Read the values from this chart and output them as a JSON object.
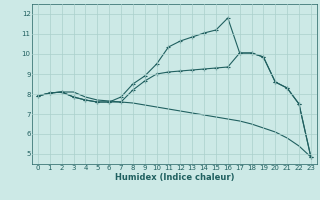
{
  "xlabel": "Humidex (Indice chaleur)",
  "background_color": "#cce9e6",
  "grid_color": "#aad0cc",
  "line_color": "#206060",
  "xlim": [
    -0.5,
    23.5
  ],
  "ylim": [
    4.5,
    12.5
  ],
  "xticks": [
    0,
    1,
    2,
    3,
    4,
    5,
    6,
    7,
    8,
    9,
    10,
    11,
    12,
    13,
    14,
    15,
    16,
    17,
    18,
    19,
    20,
    21,
    22,
    23
  ],
  "yticks": [
    5,
    6,
    7,
    8,
    9,
    10,
    11,
    12
  ],
  "line_top_x": [
    0,
    1,
    2,
    3,
    4,
    5,
    6,
    7,
    8,
    9,
    10,
    11,
    12,
    13,
    14,
    15,
    16,
    17,
    18,
    19,
    20,
    21,
    22,
    23
  ],
  "line_top_y": [
    7.9,
    8.05,
    8.1,
    7.85,
    7.7,
    7.6,
    7.6,
    7.85,
    8.5,
    8.9,
    9.5,
    10.35,
    10.65,
    10.85,
    11.05,
    11.2,
    11.8,
    10.05,
    10.05,
    9.85,
    8.6,
    8.3,
    7.5,
    4.85
  ],
  "line_mid_x": [
    0,
    1,
    2,
    3,
    4,
    5,
    6,
    7,
    8,
    9,
    10,
    11,
    12,
    13,
    14,
    15,
    16,
    17,
    18,
    19,
    20,
    21,
    22,
    23
  ],
  "line_mid_y": [
    7.9,
    8.05,
    8.1,
    7.85,
    7.7,
    7.6,
    7.6,
    7.6,
    8.2,
    8.65,
    9.0,
    9.1,
    9.15,
    9.2,
    9.25,
    9.3,
    9.35,
    10.05,
    10.05,
    9.85,
    8.6,
    8.3,
    7.5,
    4.85
  ],
  "line_bot_x": [
    0,
    1,
    2,
    3,
    4,
    5,
    6,
    7,
    8,
    9,
    10,
    11,
    12,
    13,
    14,
    15,
    16,
    17,
    18,
    19,
    20,
    21,
    22,
    23
  ],
  "line_bot_y": [
    7.9,
    8.05,
    8.1,
    8.1,
    7.85,
    7.7,
    7.65,
    7.6,
    7.55,
    7.45,
    7.35,
    7.25,
    7.15,
    7.05,
    6.95,
    6.85,
    6.75,
    6.65,
    6.5,
    6.3,
    6.1,
    5.8,
    5.4,
    4.85
  ]
}
